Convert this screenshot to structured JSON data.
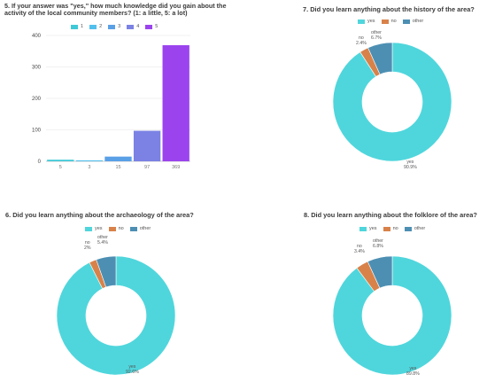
{
  "chart_data": [
    {
      "id": "q5",
      "type": "bar",
      "title": "5. If your answer was \"yes,\" how much knowledge did you gain about the activity of the local community members? (1: a little, 5: a lot)",
      "series_names": [
        "1",
        "2",
        "3",
        "4",
        "5"
      ],
      "categories": [
        "1",
        "2",
        "3",
        "4",
        "5"
      ],
      "values": [
        5,
        3,
        15,
        97,
        369
      ],
      "data_labels": [
        "5",
        "3",
        "15",
        "97",
        "369"
      ],
      "colors": [
        "#3fc9d6",
        "#52c0ec",
        "#5aa0e6",
        "#7b82e4",
        "#9b44ee"
      ],
      "yticks": [
        "0",
        "100",
        "200",
        "300",
        "400"
      ],
      "ylim": [
        0,
        400
      ],
      "grid": true,
      "legend": "top"
    },
    {
      "id": "q7",
      "type": "pie",
      "title": "7. Did you learn anything about the history of the area?",
      "labels": [
        "yes",
        "no",
        "other"
      ],
      "values": [
        90.9,
        2.4,
        6.7
      ],
      "percent_labels": [
        "90.9%",
        "2.4%",
        "6.7%"
      ],
      "colors": [
        "#4fd6dc",
        "#d8824a",
        "#4d8fb3"
      ],
      "legend": "top"
    },
    {
      "id": "q6",
      "type": "pie",
      "title": "6. Did you learn anything about the archaeology of the area?",
      "labels": [
        "yes",
        "no",
        "other"
      ],
      "values": [
        92.6,
        2,
        5.4
      ],
      "percent_labels": [
        "92.6%",
        "2%",
        "5.4%"
      ],
      "colors": [
        "#4fd6dc",
        "#d8824a",
        "#4d8fb3"
      ],
      "legend": "top"
    },
    {
      "id": "q8",
      "type": "pie",
      "title": "8. Did you learn anything about the folklore of the area?",
      "labels": [
        "yes",
        "no",
        "other"
      ],
      "values": [
        89.8,
        3.4,
        6.8
      ],
      "percent_labels": [
        "89.8%",
        "3.4%",
        "6.8%"
      ],
      "colors": [
        "#4fd6dc",
        "#d8824a",
        "#4d8fb3"
      ],
      "legend": "top"
    }
  ]
}
